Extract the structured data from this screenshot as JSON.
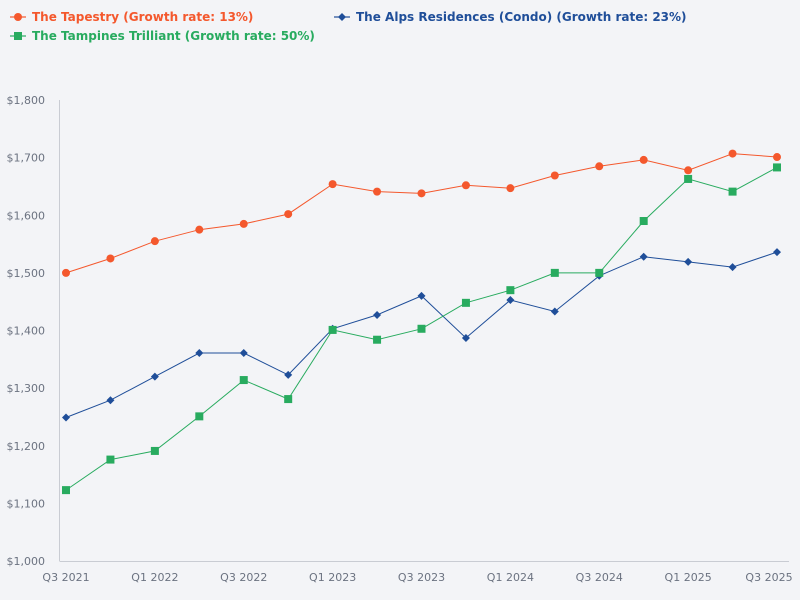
{
  "chart_data": {
    "type": "line",
    "title": "",
    "xlabel": "",
    "ylabel": "",
    "ylim": [
      1000,
      1800
    ],
    "y_ticks": [
      1000,
      1100,
      1200,
      1300,
      1400,
      1500,
      1600,
      1700,
      1800
    ],
    "y_tick_labels": [
      "$1,000",
      "$1,100",
      "$1,200",
      "$1,300",
      "$1,400",
      "$1,500",
      "$1,600",
      "$1,700",
      "$1,800"
    ],
    "grid": false,
    "legend_position": "top-left",
    "categories": [
      "Q3 2021",
      "Q4 2021",
      "Q1 2022",
      "Q2 2022",
      "Q3 2022",
      "Q4 2022",
      "Q1 2023",
      "Q2 2023",
      "Q3 2023",
      "Q4 2023",
      "Q1 2024",
      "Q2 2024",
      "Q3 2024",
      "Q4 2024",
      "Q1 2025",
      "Q2 2025",
      "Q3 2025"
    ],
    "x_tick_labels": [
      "Q3 2021",
      "Q1 2022",
      "Q3 2022",
      "Q1 2023",
      "Q3 2023",
      "Q1 2024",
      "Q3 2024",
      "Q1 2025",
      "Q3 2025"
    ],
    "series": [
      {
        "name": "The Tapestry (Growth rate: 13%)",
        "color": "#f4582d",
        "marker": "circle",
        "values": [
          1500,
          1525,
          1555,
          1575,
          1585,
          1602,
          1654,
          1641,
          1638,
          1652,
          1647,
          1669,
          1685,
          1696,
          1678,
          1707,
          1701
        ]
      },
      {
        "name": "The Alps Residences (Condo) (Growth rate: 23%)",
        "color": "#1f4e99",
        "marker": "diamond",
        "values": [
          1249,
          1279,
          1320,
          1361,
          1361,
          1323,
          1403,
          1427,
          1460,
          1387,
          1453,
          1433,
          1495,
          1528,
          1519,
          1510,
          1536
        ]
      },
      {
        "name": "The Tampines Trilliant (Growth rate: 50%)",
        "color": "#28ab5f",
        "marker": "square",
        "values": [
          1123,
          1176,
          1191,
          1251,
          1314,
          1281,
          1401,
          1384,
          1403,
          1448,
          1470,
          1500,
          1500,
          1590,
          1663,
          1641,
          1683
        ]
      }
    ]
  }
}
